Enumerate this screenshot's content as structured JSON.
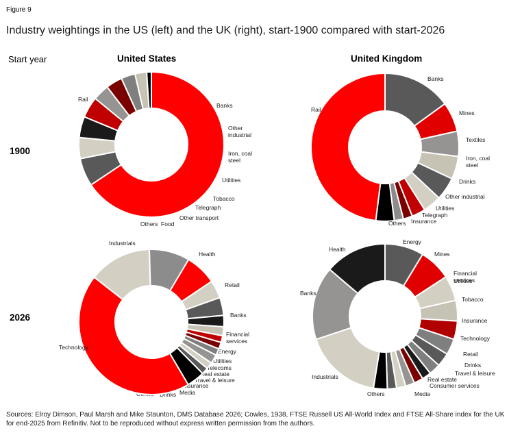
{
  "figure_label": "Figure 9",
  "title": "Industry weightings in the US (left) and the UK (right), start-1900 compared with start-2026",
  "start_year_label": "Start year",
  "column_headers": [
    "United States",
    "United Kingdom"
  ],
  "row_headers": [
    "1900",
    "2026"
  ],
  "source": "Sources: Elroy Dimson, Paul Marsh and Mike Staunton, DMS Database 2026; Cowles, 1938, FTSE Russell US All-World Index and FTSE All-Share index for the UK for end-2025 from Refinitiv. Not to be reproduced without express written permission from the authors.",
  "source_lines": [
    "Sources: Elroy Dimson, Paul Marsh and Mike Staunton, DMS Database 2026; Cowles, 1938, FTSE Russell US All-World Index and FTSE All-Share index for the UK",
    "for end-2025 from Refinitiv. Not to be reproduced without express written permission from the authors."
  ],
  "chart_data": [
    {
      "type": "pie",
      "variant": "donut",
      "country": "United States",
      "year": "1900",
      "slices": [
        {
          "label": "Rail",
          "value": 63.0,
          "color": "#ff0000"
        },
        {
          "label": "Banks",
          "value": 6.0,
          "color": "#595959"
        },
        {
          "label": "Other industrial",
          "value": 4.5,
          "color": "#d3d0c3"
        },
        {
          "label": "Iron, coal steel",
          "value": 4.5,
          "color": "#1a1a1a"
        },
        {
          "label": "Utilities",
          "value": 4.5,
          "color": "#c00000"
        },
        {
          "label": "Tobacco",
          "value": 3.5,
          "color": "#969492"
        },
        {
          "label": "Telegraph",
          "value": 3.5,
          "color": "#7a0000"
        },
        {
          "label": "Other transport",
          "value": 3.0,
          "color": "#7f7f7f"
        },
        {
          "label": "Food",
          "value": 2.5,
          "color": "#c6c2b4"
        },
        {
          "label": "Others",
          "value": 1.0,
          "color": "#000000"
        }
      ]
    },
    {
      "type": "pie",
      "variant": "donut",
      "country": "United Kingdom",
      "year": "1900",
      "slices": [
        {
          "label": "Banks",
          "value": 15.0,
          "color": "#595959"
        },
        {
          "label": "Mines",
          "value": 6.5,
          "color": "#e00000"
        },
        {
          "label": "Textiles",
          "value": 5.5,
          "color": "#969492"
        },
        {
          "label": "Iron, coal steel",
          "value": 5.0,
          "color": "#c6c2b4"
        },
        {
          "label": "Drinks",
          "value": 5.0,
          "color": "#595959"
        },
        {
          "label": "Other industrial",
          "value": 4.0,
          "color": "#d3d0c3"
        },
        {
          "label": "Utilities",
          "value": 3.0,
          "color": "#c00000"
        },
        {
          "label": "Telegraph",
          "value": 2.0,
          "color": "#7a0000"
        },
        {
          "label": "Insurance",
          "value": 2.0,
          "color": "#8c8c8c"
        },
        {
          "label": "Others",
          "value": 4.0,
          "color": "#000000"
        },
        {
          "label": "Rail",
          "value": 48.0,
          "color": "#ff0000"
        }
      ]
    },
    {
      "type": "pie",
      "variant": "donut",
      "country": "United States",
      "year": "2026",
      "slices": [
        {
          "label": "Industrials",
          "value": 14.0,
          "color": "#d3d0c3"
        },
        {
          "label": "Health",
          "value": 9.0,
          "color": "#8c8c8c"
        },
        {
          "label": "Retail",
          "value": 7.0,
          "color": "#ff0000"
        },
        {
          "label": "Banks",
          "value": 4.0,
          "color": "#d3d0c3"
        },
        {
          "label": "Financial services",
          "value": 4.0,
          "color": "#595959"
        },
        {
          "label": "Energy",
          "value": 2.5,
          "color": "#1a1a1a"
        },
        {
          "label": "Utilities",
          "value": 2.0,
          "color": "#c6c2b4"
        },
        {
          "label": "Telecoms",
          "value": 1.5,
          "color": "#c00000"
        },
        {
          "label": "Real estate",
          "value": 1.5,
          "color": "#7a0000"
        },
        {
          "label": "Travel & leisure",
          "value": 1.5,
          "color": "#7f7f7f"
        },
        {
          "label": "Insurance",
          "value": 2.0,
          "color": "#969492"
        },
        {
          "label": "Media",
          "value": 1.5,
          "color": "#d3d0c3"
        },
        {
          "label": "Drinks",
          "value": 1.5,
          "color": "#595959"
        },
        {
          "label": "Others",
          "value": 4.0,
          "color": "#000000"
        },
        {
          "label": "Technology",
          "value": 44.0,
          "color": "#ff0000"
        }
      ]
    },
    {
      "type": "pie",
      "variant": "donut",
      "country": "United Kingdom",
      "year": "2026",
      "slices": [
        {
          "label": "Energy",
          "value": 8.5,
          "color": "#595959"
        },
        {
          "label": "Mines",
          "value": 7.0,
          "color": "#e00000"
        },
        {
          "label": "Financial services",
          "value": 5.5,
          "color": "#d3d0c3"
        },
        {
          "label": "Utilities",
          "value": 4.5,
          "color": "#c6c2b4"
        },
        {
          "label": "Tobacco",
          "value": 4.0,
          "color": "#b00000"
        },
        {
          "label": "Insurance",
          "value": 3.5,
          "color": "#7f7f7f"
        },
        {
          "label": "Technology",
          "value": 3.0,
          "color": "#595959"
        },
        {
          "label": "Retail",
          "value": 2.5,
          "color": "#7f7f7f"
        },
        {
          "label": "Drinks",
          "value": 2.0,
          "color": "#1a1a1a"
        },
        {
          "label": "Travel & leisure",
          "value": 2.0,
          "color": "#7a0000"
        },
        {
          "label": "Real estate",
          "value": 2.0,
          "color": "#969492"
        },
        {
          "label": "Consumer services",
          "value": 2.0,
          "color": "#d3d0c3"
        },
        {
          "label": "Media",
          "value": 2.0,
          "color": "#595959"
        },
        {
          "label": "Others",
          "value": 3.0,
          "color": "#000000"
        },
        {
          "label": "Industrials",
          "value": 17.0,
          "color": "#d3d0c3"
        },
        {
          "label": "Banks",
          "value": 16.0,
          "color": "#969492"
        },
        {
          "label": "Health",
          "value": 13.5,
          "color": "#1a1a1a"
        }
      ]
    }
  ]
}
